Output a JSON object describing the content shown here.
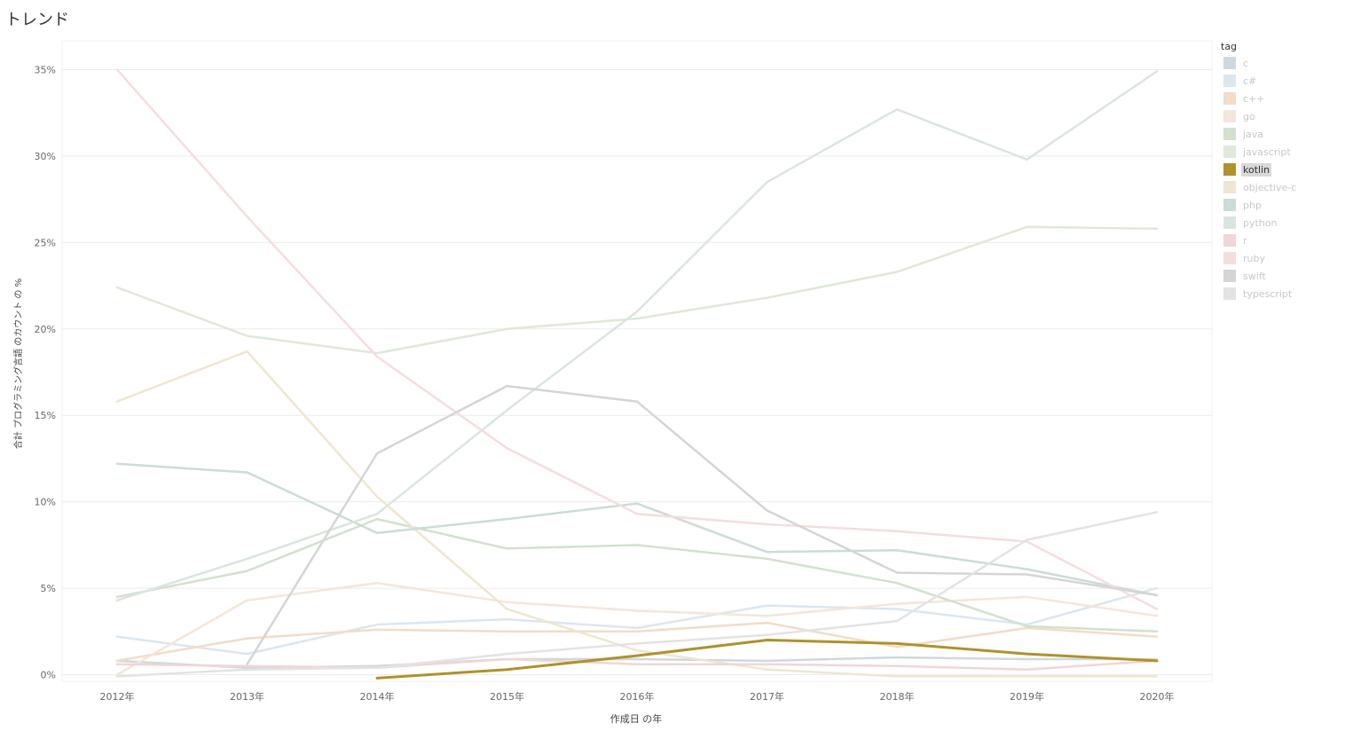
{
  "page": {
    "title": "トレンド"
  },
  "chart_data": {
    "type": "line",
    "title": "トレンド",
    "xlabel": "作成日 の年",
    "ylabel": "合計 プログラミング言語 のカウント の %",
    "categories": [
      "2012年",
      "2013年",
      "2014年",
      "2015年",
      "2016年",
      "2017年",
      "2018年",
      "2019年",
      "2020年"
    ],
    "ylim": [
      0,
      35
    ],
    "yticks": [
      0,
      5,
      10,
      15,
      20,
      25,
      30,
      35
    ],
    "ytick_labels": [
      "0%",
      "5%",
      "10%",
      "15%",
      "20%",
      "25%",
      "30%",
      "35%"
    ],
    "grid": "horizontal",
    "legend_title": "tag",
    "legend_position": "right",
    "highlighted": "kotlin",
    "series": [
      {
        "name": "c",
        "color": "#cfd8df",
        "values": [
          0.8,
          0.4,
          0.5,
          0.9,
          0.9,
          0.8,
          1.0,
          0.9,
          0.9
        ]
      },
      {
        "name": "c#",
        "color": "#dde6ee",
        "values": [
          2.2,
          1.2,
          2.9,
          3.2,
          2.7,
          4.0,
          3.8,
          2.9,
          5.0
        ]
      },
      {
        "name": "c++",
        "color": "#f2dcc7",
        "values": [
          0.8,
          2.1,
          2.6,
          2.5,
          2.5,
          3.0,
          1.6,
          2.7,
          2.2
        ]
      },
      {
        "name": "go",
        "color": "#f3e6da",
        "values": [
          0.0,
          4.3,
          5.3,
          4.2,
          3.7,
          3.4,
          4.1,
          4.5,
          3.4
        ]
      },
      {
        "name": "java",
        "color": "#d3e0cf",
        "values": [
          4.5,
          6.0,
          9.0,
          7.3,
          7.5,
          6.7,
          5.3,
          2.8,
          2.5
        ]
      },
      {
        "name": "javascript",
        "color": "#dfe8da",
        "values": [
          22.4,
          19.6,
          18.6,
          20.0,
          20.6,
          21.8,
          23.3,
          25.9,
          25.8
        ]
      },
      {
        "name": "kotlin",
        "color": "#b0912b",
        "values": [
          null,
          null,
          -0.2,
          0.3,
          1.1,
          2.0,
          1.8,
          1.2,
          0.8
        ]
      },
      {
        "name": "objective-c",
        "color": "#efe6d2",
        "values": [
          15.8,
          18.7,
          10.3,
          3.8,
          1.4,
          0.3,
          -0.1,
          -0.1,
          -0.1
        ]
      },
      {
        "name": "php",
        "color": "#ccdcd6",
        "values": [
          12.2,
          11.7,
          8.2,
          9.0,
          9.9,
          7.1,
          7.2,
          6.1,
          4.6
        ]
      },
      {
        "name": "python",
        "color": "#dbe5df",
        "values": [
          4.3,
          6.7,
          9.3,
          15.3,
          21.0,
          28.5,
          32.7,
          29.8,
          34.9
        ]
      },
      {
        "name": "r",
        "color": "#f0d6d6",
        "values": [
          0.6,
          0.5,
          0.4,
          0.9,
          0.6,
          0.6,
          0.5,
          0.3,
          0.8
        ]
      },
      {
        "name": "ruby",
        "color": "#f3dede",
        "values": [
          35.0,
          26.5,
          18.4,
          13.1,
          9.3,
          8.7,
          8.3,
          7.7,
          3.8
        ]
      },
      {
        "name": "swift",
        "color": "#d5d5d5",
        "values": [
          null,
          0.6,
          12.8,
          16.7,
          15.8,
          9.5,
          5.9,
          5.8,
          4.6
        ]
      },
      {
        "name": "typescript",
        "color": "#e3e3e3",
        "values": [
          -0.1,
          0.3,
          0.4,
          1.2,
          1.8,
          2.3,
          3.1,
          7.8,
          9.4
        ]
      }
    ]
  }
}
